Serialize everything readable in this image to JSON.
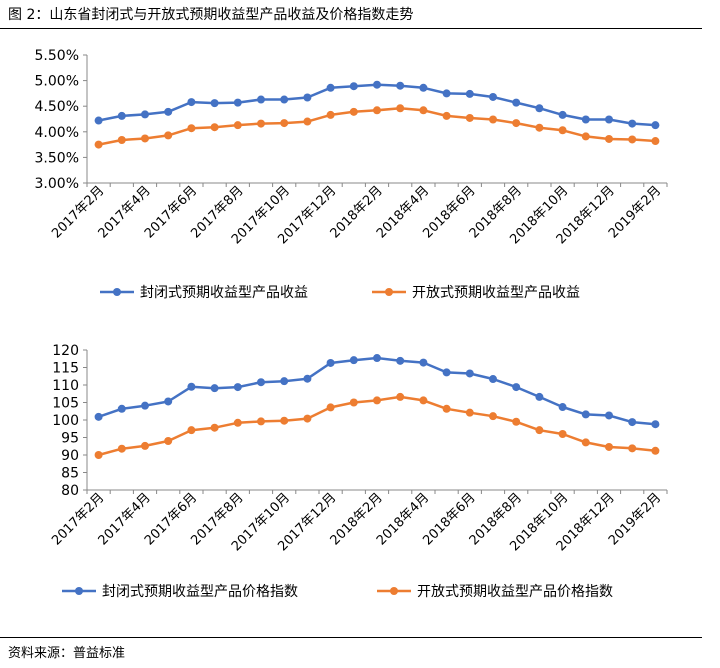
{
  "figure_title": "图 2：山东省封闭式与开放式预期收益型产品收益及价格指数走势",
  "source_text": "资料来源：普益标准",
  "chart_data": [
    {
      "type": "line",
      "x": [
        "2017年2月",
        "2017年3月",
        "2017年4月",
        "2017年5月",
        "2017年6月",
        "2017年7月",
        "2017年8月",
        "2017年9月",
        "2017年10月",
        "2017年11月",
        "2017年12月",
        "2018年1月",
        "2018年2月",
        "2018年3月",
        "2018年4月",
        "2018年5月",
        "2018年6月",
        "2018年7月",
        "2018年8月",
        "2018年9月",
        "2018年10月",
        "2018年11月",
        "2018年12月",
        "2019年1月",
        "2019年2月"
      ],
      "x_tick_labels": [
        "2017年2月",
        "2017年4月",
        "2017年6月",
        "2017年8月",
        "2017年10月",
        "2017年12月",
        "2018年2月",
        "2018年4月",
        "2018年6月",
        "2018年8月",
        "2018年10月",
        "2018年12月",
        "2019年2月"
      ],
      "y_ticks": [
        "3.00%",
        "3.50%",
        "4.00%",
        "4.50%",
        "5.00%",
        "5.50%"
      ],
      "ylim": [
        3.0,
        5.5
      ],
      "grid": false,
      "legend_position": "bottom",
      "series": [
        {
          "name": "封闭式预期收益型产品收益",
          "color": "#4472C4",
          "values": [
            4.22,
            4.31,
            4.34,
            4.39,
            4.58,
            4.56,
            4.57,
            4.63,
            4.63,
            4.67,
            4.86,
            4.89,
            4.92,
            4.9,
            4.86,
            4.75,
            4.74,
            4.68,
            4.57,
            4.46,
            4.33,
            4.24,
            4.24,
            4.16,
            4.13
          ]
        },
        {
          "name": "开放式预期收益型产品收益",
          "color": "#ED7D31",
          "values": [
            3.75,
            3.84,
            3.87,
            3.93,
            4.07,
            4.09,
            4.13,
            4.16,
            4.17,
            4.2,
            4.33,
            4.39,
            4.42,
            4.46,
            4.42,
            4.31,
            4.27,
            4.24,
            4.17,
            4.08,
            4.03,
            3.91,
            3.86,
            3.85,
            3.82
          ]
        }
      ]
    },
    {
      "type": "line",
      "x": [
        "2017年2月",
        "2017年3月",
        "2017年4月",
        "2017年5月",
        "2017年6月",
        "2017年7月",
        "2017年8月",
        "2017年9月",
        "2017年10月",
        "2017年11月",
        "2017年12月",
        "2018年1月",
        "2018年2月",
        "2018年3月",
        "2018年4月",
        "2018年5月",
        "2018年6月",
        "2018年7月",
        "2018年8月",
        "2018年9月",
        "2018年10月",
        "2018年11月",
        "2018年12月",
        "2019年1月",
        "2019年2月"
      ],
      "x_tick_labels": [
        "2017年2月",
        "2017年4月",
        "2017年6月",
        "2017年8月",
        "2017年10月",
        "2017年12月",
        "2018年2月",
        "2018年4月",
        "2018年6月",
        "2018年8月",
        "2018年10月",
        "2018年12月",
        "2019年2月"
      ],
      "y_ticks": [
        "80",
        "85",
        "90",
        "95",
        "100",
        "105",
        "110",
        "115",
        "120"
      ],
      "ylim": [
        80,
        120
      ],
      "grid": false,
      "legend_position": "bottom",
      "series": [
        {
          "name": "封闭式预期收益型产品价格指数",
          "color": "#4472C4",
          "values": [
            100.9,
            103.2,
            104.1,
            105.3,
            109.5,
            109.1,
            109.4,
            110.8,
            111.1,
            111.8,
            116.3,
            117.1,
            117.7,
            116.9,
            116.4,
            113.6,
            113.3,
            111.7,
            109.4,
            106.6,
            103.7,
            101.6,
            101.3,
            99.4,
            98.8
          ]
        },
        {
          "name": "开放式预期收益型产品价格指数",
          "color": "#ED7D31",
          "values": [
            90.0,
            91.8,
            92.6,
            94.0,
            97.1,
            97.8,
            99.2,
            99.6,
            99.8,
            100.4,
            103.6,
            105.0,
            105.6,
            106.6,
            105.6,
            103.2,
            102.1,
            101.1,
            99.5,
            97.1,
            96.0,
            93.6,
            92.3,
            91.9,
            91.2
          ]
        }
      ]
    }
  ]
}
